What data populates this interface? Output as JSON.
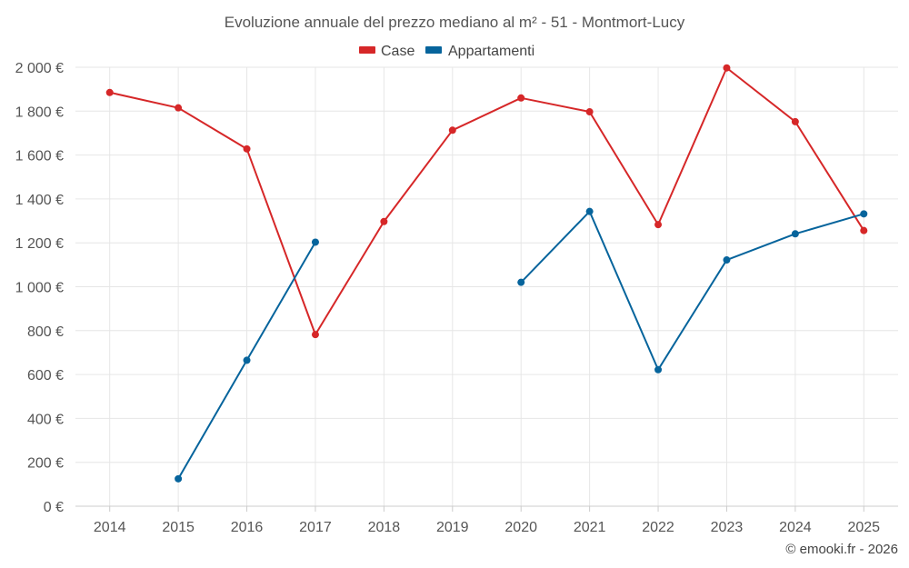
{
  "chart_data": {
    "type": "line",
    "title": "Evoluzione annuale del prezzo mediano al m² - 51 - Montmort-Lucy",
    "xlabel": "",
    "ylabel": "",
    "categories": [
      "2014",
      "2015",
      "2016",
      "2017",
      "2018",
      "2019",
      "2020",
      "2021",
      "2022",
      "2023",
      "2024",
      "2025"
    ],
    "ylim": [
      0,
      2000
    ],
    "yticks": [
      0,
      200,
      400,
      600,
      800,
      1000,
      1200,
      1400,
      1600,
      1800,
      2000
    ],
    "ytick_labels": [
      "0 €",
      "200 €",
      "400 €",
      "600 €",
      "800 €",
      "1 000 €",
      "1 200 €",
      "1 400 €",
      "1 600 €",
      "1 800 €",
      "2 000 €"
    ],
    "grid": true,
    "legend_position": "top-center",
    "series": [
      {
        "name": "Case",
        "color": "#d62728",
        "values": [
          1885,
          1815,
          1628,
          782,
          1297,
          1713,
          1860,
          1797,
          1283,
          1997,
          1752,
          1256
        ]
      },
      {
        "name": "Appartamenti",
        "color": "#06649c",
        "values": [
          null,
          125,
          665,
          1203,
          null,
          null,
          1020,
          1343,
          622,
          1122,
          1241,
          1332
        ]
      }
    ],
    "credit": "© emooki.fr - 2026"
  }
}
